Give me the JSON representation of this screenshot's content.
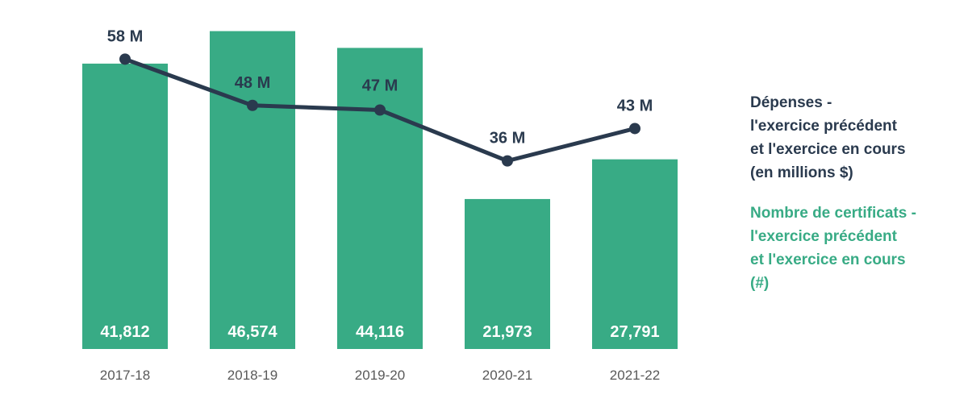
{
  "colors": {
    "bar": "#38ab85",
    "line": "#2a3a4e",
    "tick": "#595959"
  },
  "chart_data": {
    "type": "bar",
    "categories": [
      "2017-18",
      "2018-19",
      "2019-20",
      "2020-21",
      "2021-22"
    ],
    "series": [
      {
        "name": "Nombre de certificats - l'exercice précédent et l'exercice en cours (#)",
        "type": "bar",
        "values": [
          41812,
          46574,
          44116,
          21973,
          27791
        ],
        "labels": [
          "41,812",
          "46,574",
          "44,116",
          "21,973",
          "27,791"
        ]
      },
      {
        "name": "Dépenses - l'exercice précédent et l'exercice en cours (en millions $)",
        "type": "line",
        "values": [
          58,
          48,
          47,
          36,
          43
        ],
        "labels": [
          "58 M",
          "48 M",
          "47 M",
          "36 M",
          "43 M"
        ]
      }
    ],
    "legend": {
      "position": "right",
      "line_lines": [
        "Dépenses -",
        "l'exercice précédent",
        "et l'exercice en cours",
        "(en millions $)"
      ],
      "bar_lines": [
        "Nombre de certificats -",
        "l'exercice précédent",
        "et l'exercice en cours",
        "(#)"
      ]
    },
    "ylim_bar": [
      0,
      47000
    ],
    "ylim_line": [
      26,
      68
    ],
    "grid": false
  }
}
